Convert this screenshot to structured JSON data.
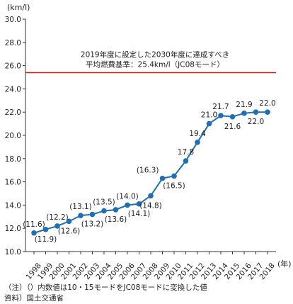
{
  "chart_data": {
    "type": "line",
    "y_unit_label": "(km/l)",
    "x_unit_label": "(年)",
    "categories": [
      "1998",
      "1999",
      "2000",
      "2001",
      "2002",
      "2003",
      "2004",
      "2005",
      "2006",
      "2007",
      "2008",
      "2009",
      "2010",
      "2011",
      "2012",
      "2013",
      "2014",
      "2015",
      "2016",
      "2017",
      "2018"
    ],
    "values": [
      11.6,
      11.9,
      12.2,
      12.6,
      13.1,
      13.2,
      13.5,
      13.6,
      14.0,
      14.1,
      14.8,
      16.3,
      16.5,
      17.8,
      19.4,
      21.0,
      21.7,
      21.6,
      21.9,
      22.0,
      22.0
    ],
    "data_labels": [
      "(11.6)",
      "(11.9)",
      "(12.2)",
      "(12.6)",
      "(13.1)",
      "(13.2)",
      "(13.5)",
      "(13.6)",
      "(14.0)",
      "(14.1)",
      "(14.8)",
      "(16.3)",
      "(16.5)",
      "17.8",
      "19.4",
      "21.0",
      "21.7",
      "21.6",
      "21.9",
      "22.0",
      "22.0"
    ],
    "label_position": [
      "above",
      "below",
      "above",
      "below",
      "above",
      "below",
      "above",
      "below",
      "above",
      "below",
      "below",
      "left",
      "below",
      "above",
      "above",
      "above",
      "above",
      "below",
      "above",
      "below",
      "above"
    ],
    "ylim": [
      10.0,
      30.0
    ],
    "yticks": [
      "10.0",
      "12.0",
      "14.0",
      "16.0",
      "18.0",
      "20.0",
      "22.0",
      "24.0",
      "26.0",
      "28.0",
      "30.0"
    ],
    "target_line": {
      "value": 25.4,
      "label_line1": "2019年度に設定した2030年度に達成すべき",
      "label_line2": "平均燃費基準：25.4km/l（JC08モード）"
    },
    "colors": {
      "line": "#1f6fb2",
      "marker": "#1f6fb2",
      "target": "#d7191c",
      "axis": "#333333"
    }
  },
  "notes": {
    "note1": "（注）（）内数値は10・15モードをJC08モードに変換した値",
    "source": "資料）国土交通省"
  }
}
